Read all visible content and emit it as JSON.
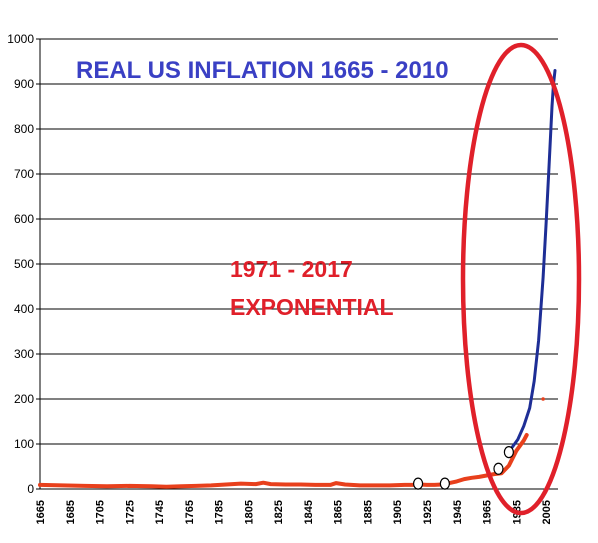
{
  "chart_data": {
    "type": "line",
    "title": "REAL US INFLATION 1665 - 2010",
    "annotation_line1": "1971 - 2017",
    "annotation_line2": "EXPONENTIAL",
    "ylim": [
      0,
      1000
    ],
    "xlim": [
      1665,
      2013
    ],
    "yticks": [
      0,
      100,
      200,
      300,
      400,
      500,
      600,
      700,
      800,
      900,
      1000
    ],
    "xticks": [
      "1665",
      "1685",
      "1705",
      "1725",
      "1745",
      "1765",
      "1785",
      "1805",
      "1825",
      "1845",
      "1865",
      "1885",
      "1905",
      "1925",
      "1945",
      "1965",
      "1985",
      "2005"
    ],
    "grid": "horizontal",
    "series": [
      {
        "color": "#e8401c",
        "x": [
          1665,
          1680,
          1695,
          1710,
          1725,
          1740,
          1750,
          1760,
          1770,
          1780,
          1790,
          1800,
          1810,
          1815,
          1820,
          1830,
          1840,
          1850,
          1860,
          1864,
          1870,
          1880,
          1890,
          1900,
          1910,
          1915,
          1920,
          1925,
          1930,
          1935,
          1940,
          1945,
          1950,
          1955,
          1960,
          1965,
          1970,
          1975,
          1980,
          1985,
          1990,
          1992
        ],
        "y": [
          9,
          8,
          7,
          6,
          7,
          6,
          5,
          6,
          7,
          8,
          10,
          12,
          11,
          14,
          11,
          10,
          10,
          9,
          9,
          13,
          10,
          8,
          8,
          8,
          9,
          9,
          10,
          9,
          9,
          10,
          13,
          17,
          22,
          25,
          27,
          30,
          33,
          35,
          52,
          85,
          108,
          120
        ]
      },
      {
        "color": "#1e2e96",
        "x": [
          1982,
          1986,
          1990,
          1994,
          1997,
          2000,
          2003,
          2005,
          2007,
          2009,
          2010,
          2011
        ],
        "y": [
          92,
          110,
          140,
          180,
          240,
          330,
          470,
          590,
          720,
          850,
          900,
          930
        ]
      }
    ],
    "markers": [
      {
        "x": 1919,
        "y": 12
      },
      {
        "x": 1937,
        "y": 12
      },
      {
        "x": 1973,
        "y": 45
      },
      {
        "x": 1980,
        "y": 82
      }
    ],
    "stray_point": {
      "x": 2003,
      "y": 200
    }
  }
}
